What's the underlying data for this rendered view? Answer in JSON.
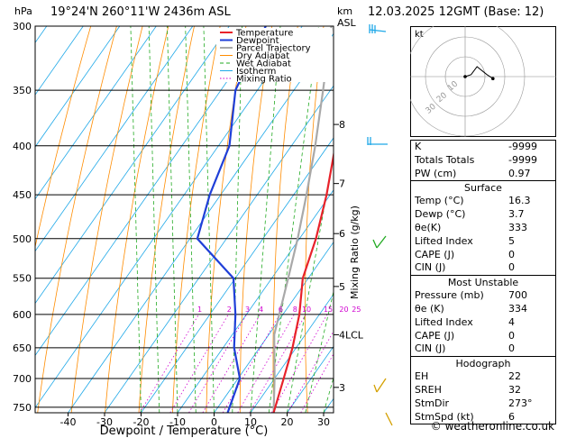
{
  "header": {
    "left_unit": "hPa",
    "location": "19°24'N  260°11'W  2436m  ASL",
    "right_unit_top": "km",
    "right_unit_bottom": "ASL",
    "datetime": "12.03.2025  12GMT  (Base: 12)"
  },
  "footer": {
    "credit": "© weatheronline.co.uk"
  },
  "colors": {
    "temperature": "#e8222a",
    "dewpoint": "#1f3fd8",
    "parcel": "#a9a9a9",
    "dry_adiabat": "#ff8c00",
    "wet_adiabat": "#22aa22",
    "isotherm": "#1ea8e8",
    "mixing_ratio": "#d000d0"
  },
  "chart_data": {
    "type": "line",
    "title": "",
    "xlabel": "Dewpoint / Temperature (°C)",
    "ylabel": "",
    "y_scale": "log-pressure",
    "ylim": [
      760,
      300
    ],
    "xlim": [
      -48,
      33
    ],
    "skew": "skew-T",
    "grid": true,
    "legend_position": "top-left",
    "x_ticks": [
      "-40",
      "-30",
      "-20",
      "-10",
      "0",
      "10",
      "20",
      "30"
    ],
    "pressure_levels": [
      300,
      350,
      400,
      450,
      500,
      550,
      600,
      650,
      700,
      750
    ],
    "altitude_ticks": [
      {
        "label": "8",
        "p": 380
      },
      {
        "label": "7",
        "p": 438
      },
      {
        "label": "6",
        "p": 494
      },
      {
        "label": "5",
        "p": 561
      },
      {
        "label": "4LCL",
        "p": 630
      },
      {
        "label": "3",
        "p": 715
      }
    ],
    "mixing_ratio_axis_label": "Mixing Ratio (g/kg)",
    "mixing_ratio_labels": [
      "1",
      "2",
      "3",
      "4",
      "6",
      "8",
      "10",
      "15",
      "20",
      "25"
    ],
    "mixing_ratio_values": [
      1,
      2,
      3,
      4,
      6,
      8,
      10,
      15,
      20,
      25
    ],
    "legend": [
      "Temperature",
      "Dewpoint",
      "Parcel Trajectory",
      "Dry Adiabat",
      "Wet Adiabat",
      "Isotherm",
      "Mixing Ratio"
    ],
    "series": [
      {
        "name": "Temperature",
        "points": [
          [
            760,
            16.3
          ],
          [
            700,
            12.5
          ],
          [
            650,
            9.0
          ],
          [
            600,
            4.5
          ],
          [
            550,
            -1.5
          ],
          [
            500,
            -5.5
          ],
          [
            450,
            -11.0
          ],
          [
            400,
            -18.0
          ],
          [
            350,
            -26.5
          ],
          [
            300,
            -35.0
          ]
        ]
      },
      {
        "name": "Dewpoint",
        "points": [
          [
            760,
            3.7
          ],
          [
            700,
            0.5
          ],
          [
            650,
            -7.0
          ],
          [
            600,
            -13.0
          ],
          [
            550,
            -20.5
          ],
          [
            500,
            -38.0
          ],
          [
            450,
            -43.0
          ],
          [
            400,
            -47.0
          ],
          [
            350,
            -56.0
          ],
          [
            300,
            -60.0
          ]
        ]
      },
      {
        "name": "Parcel Trajectory",
        "points": [
          [
            760,
            16.3
          ],
          [
            700,
            10.0
          ],
          [
            630,
            1.5
          ],
          [
            600,
            -1.0
          ],
          [
            550,
            -5.5
          ],
          [
            500,
            -10.5
          ],
          [
            450,
            -16.5
          ],
          [
            400,
            -23.5
          ],
          [
            350,
            -32.0
          ],
          [
            300,
            -42.0
          ]
        ]
      }
    ]
  },
  "hodograph": {
    "label": "kt",
    "ring_labels": [
      "10",
      "20",
      "30"
    ],
    "points": [
      [
        0,
        0
      ],
      [
        3,
        1
      ],
      [
        6,
        5
      ],
      [
        11,
        1
      ],
      [
        14,
        -1
      ]
    ]
  },
  "indices": {
    "rows": [
      {
        "label": "K",
        "value": "-9999"
      },
      {
        "label": "Totals Totals",
        "value": "-9999"
      },
      {
        "label": "PW (cm)",
        "value": "0.97"
      }
    ]
  },
  "surface": {
    "title": "Surface",
    "rows": [
      {
        "label": "Temp (°C)",
        "value": "16.3"
      },
      {
        "label": "Dewp (°C)",
        "value": "3.7"
      },
      {
        "label": "θe(K)",
        "value": "333"
      },
      {
        "label": "Lifted Index",
        "value": "5"
      },
      {
        "label": "CAPE (J)",
        "value": "0"
      },
      {
        "label": "CIN (J)",
        "value": "0"
      }
    ]
  },
  "most_unstable": {
    "title": "Most Unstable",
    "rows": [
      {
        "label": "Pressure (mb)",
        "value": "700"
      },
      {
        "label": "θe (K)",
        "value": "334"
      },
      {
        "label": "Lifted Index",
        "value": "4"
      },
      {
        "label": "CAPE (J)",
        "value": "0"
      },
      {
        "label": "CIN (J)",
        "value": "0"
      }
    ]
  },
  "hodograph_table": {
    "title": "Hodograph",
    "rows": [
      {
        "label": "EH",
        "value": "22"
      },
      {
        "label": "SREH",
        "value": "32"
      },
      {
        "label": "StmDir",
        "value": "273°"
      },
      {
        "label": "StmSpd (kt)",
        "value": "6"
      }
    ]
  }
}
